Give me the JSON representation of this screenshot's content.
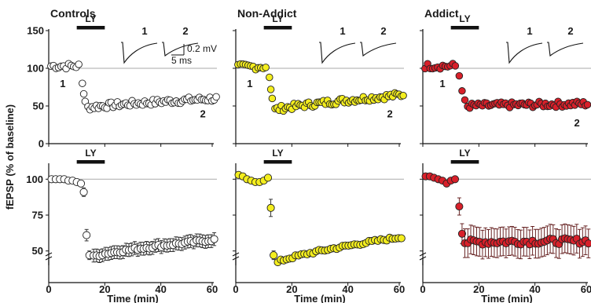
{
  "figure": {
    "ylabel": "fEPSP (% of baseline)",
    "xlabel": "Time (min)",
    "drug_label": "LY",
    "scale_bar": {
      "voltage": "0.2 mV",
      "time": "5 ms"
    },
    "colors": {
      "controls": "#ffffff",
      "non_addict": "#f4ee1e",
      "addict": "#d8202a",
      "edge": "#222222",
      "ref_line": "#aaaaaa"
    }
  },
  "chart_data": [
    {
      "type": "scatter",
      "panel": "top",
      "title": "Controls",
      "color": "#ffffff",
      "ylim": [
        0,
        150
      ],
      "yticks": [
        "0",
        "50",
        "100",
        "150"
      ],
      "xlim": [
        0,
        60
      ],
      "drug_bar": [
        10,
        20
      ],
      "reference_y": 100,
      "markers": [
        {
          "label": "1",
          "x": 5,
          "y": 80
        },
        {
          "label": "2",
          "x": 55,
          "y": 40
        }
      ],
      "traces": [
        "1",
        "2"
      ],
      "series": [
        {
          "baseline": 103,
          "baseline_end": 11,
          "drop": [
            [
              12,
              80
            ],
            [
              12.5,
              66
            ],
            [
              13,
              56
            ]
          ],
          "trough": 48,
          "trough_x": 14,
          "final": 60,
          "noise": 4
        }
      ]
    },
    {
      "type": "scatter",
      "panel": "top",
      "title": "Non-Addict",
      "color": "#f4ee1e",
      "ylim": [
        0,
        150
      ],
      "xlim": [
        0,
        60
      ],
      "drug_bar": [
        10,
        20
      ],
      "reference_y": 100,
      "markers": [
        {
          "label": "1",
          "x": 5,
          "y": 80
        },
        {
          "label": "2",
          "x": 55,
          "y": 40
        }
      ],
      "traces": [
        "1",
        "2"
      ],
      "series": [
        {
          "baseline": 102,
          "baseline_end": 11,
          "drop": [
            [
              12,
              88
            ],
            [
              12.5,
              72
            ],
            [
              13,
              60
            ]
          ],
          "trough": 45,
          "trough_x": 14,
          "final": 65,
          "noise": 4
        }
      ]
    },
    {
      "type": "scatter",
      "panel": "top",
      "title": "Addict",
      "color": "#d8202a",
      "ylim": [
        0,
        150
      ],
      "xlim": [
        0,
        60
      ],
      "drug_bar": [
        10,
        20
      ],
      "reference_y": 100,
      "markers": [
        {
          "label": "1",
          "x": 7,
          "y": 80
        },
        {
          "label": "2",
          "x": 55,
          "y": 28
        }
      ],
      "traces": [
        "1",
        "2"
      ],
      "series": [
        {
          "baseline": 103,
          "baseline_end": 12,
          "drop": [
            [
              13,
              90
            ],
            [
              14,
              70
            ],
            [
              15,
              58
            ]
          ],
          "trough": 50,
          "trough_x": 16,
          "final": 53,
          "noise": 4
        }
      ]
    },
    {
      "type": "scatter",
      "panel": "bottom",
      "color": "#ffffff",
      "ylim": [
        40,
        110
      ],
      "axis_break": true,
      "yticks": [
        "50",
        "75",
        "100"
      ],
      "xlim": [
        0,
        60
      ],
      "xticks": [
        "0",
        "20",
        "40",
        "60"
      ],
      "drug_bar": [
        10,
        20
      ],
      "reference_y": 100,
      "series": [
        {
          "points": [
            [
              1,
              100
            ],
            [
              2.5,
              100
            ],
            [
              4,
              100
            ],
            [
              5.5,
              100
            ],
            [
              7,
              99
            ],
            [
              8.5,
              99
            ],
            [
              10,
              98
            ],
            [
              11.5,
              97
            ],
            [
              12.5,
              91
            ],
            [
              13.5,
              61
            ],
            [
              14.5,
              47
            ]
          ],
          "errors": [
            1,
            1,
            1,
            1,
            1,
            1,
            1,
            2,
            3,
            4,
            3
          ],
          "trough": 46,
          "trough_x": 16,
          "final": 58,
          "noise": 1,
          "error": 4.5
        }
      ]
    },
    {
      "type": "scatter",
      "panel": "bottom",
      "color": "#f4ee1e",
      "ylim": [
        40,
        110
      ],
      "xlim": [
        0,
        60
      ],
      "xticks": [
        "0",
        "20",
        "40",
        "60"
      ],
      "drug_bar": [
        10,
        20
      ],
      "reference_y": 100,
      "series": [
        {
          "points": [
            [
              1,
              103
            ],
            [
              2.5,
              102
            ],
            [
              4,
              100
            ],
            [
              5.5,
              99
            ],
            [
              7,
              98
            ],
            [
              8.5,
              98
            ],
            [
              10,
              99
            ],
            [
              11.5,
              101
            ],
            [
              12.5,
              80
            ],
            [
              13.5,
              47
            ]
          ],
          "errors": [
            1,
            1,
            1,
            1,
            1,
            1,
            1,
            1,
            6,
            3
          ],
          "trough": 42,
          "trough_x": 15,
          "final": 60,
          "noise": 1,
          "error": 2
        }
      ]
    },
    {
      "type": "scatter",
      "panel": "bottom",
      "color": "#d8202a",
      "ylim": [
        40,
        110
      ],
      "xlim": [
        0,
        60
      ],
      "xticks": [
        "0",
        "20",
        "40",
        "60"
      ],
      "drug_bar": [
        10,
        20
      ],
      "reference_y": 100,
      "series": [
        {
          "points": [
            [
              1,
              102
            ],
            [
              2.5,
              102
            ],
            [
              4,
              101
            ],
            [
              5.5,
              100
            ],
            [
              7,
              99
            ],
            [
              8.5,
              97
            ],
            [
              10,
              99
            ],
            [
              11.5,
              100
            ],
            [
              13,
              81
            ],
            [
              14,
              62
            ]
          ],
          "errors": [
            1,
            1,
            1,
            1,
            1,
            1,
            1,
            1,
            6,
            7
          ],
          "trough": 56,
          "trough_x": 15,
          "final": 57,
          "noise": 2,
          "error": 10
        }
      ]
    }
  ]
}
